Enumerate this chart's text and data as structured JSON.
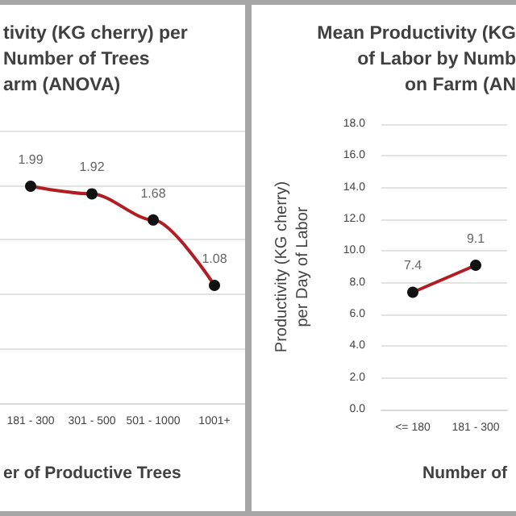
{
  "chart_data": [
    {
      "type": "line",
      "title": "tivity (KG cherry) per\nNumber of Trees\narm (ANOVA)",
      "xlabel": "er of Productive Trees",
      "categories": [
        "181 - 300",
        "301 - 500",
        "501 - 1000",
        "1001+"
      ],
      "series": [
        {
          "color": "#b01e23",
          "values": [
            1.99,
            1.92,
            1.68,
            1.08
          ]
        }
      ],
      "ylim": [
        0,
        2.5
      ],
      "yticks": [
        0,
        0.5,
        1,
        1.5,
        2,
        2.5
      ],
      "tick_labels": "x",
      "grid": "y",
      "data_labels": true,
      "marker": "circle",
      "line_style": "solid"
    },
    {
      "type": "line",
      "title": "Mean Productivity (KG\nof Labor by Numb\non Farm (AN",
      "xlabel": "Number of",
      "ylabel": "Productivity (KG cherry)\nper Day of Labor",
      "categories": [
        "<= 180",
        "181 - 300"
      ],
      "series": [
        {
          "color": "#b01e23",
          "values": [
            7.4,
            9.1
          ]
        }
      ],
      "ylim": [
        0,
        18
      ],
      "yticks": [
        {
          "value": 0,
          "label": "0.0"
        },
        {
          "value": 2,
          "label": "2.0"
        },
        {
          "value": 4,
          "label": "4.0"
        },
        {
          "value": 6,
          "label": "6.0"
        },
        {
          "value": 8,
          "label": "8.0"
        },
        {
          "value": 10,
          "label": "10.0"
        },
        {
          "value": 12,
          "label": "12.0"
        },
        {
          "value": 14,
          "label": "14.0"
        },
        {
          "value": 16,
          "label": "16.0"
        },
        {
          "value": 18,
          "label": "18.0"
        }
      ],
      "grid": "y",
      "data_labels": true,
      "marker": "circle",
      "line_style": "solid"
    }
  ]
}
